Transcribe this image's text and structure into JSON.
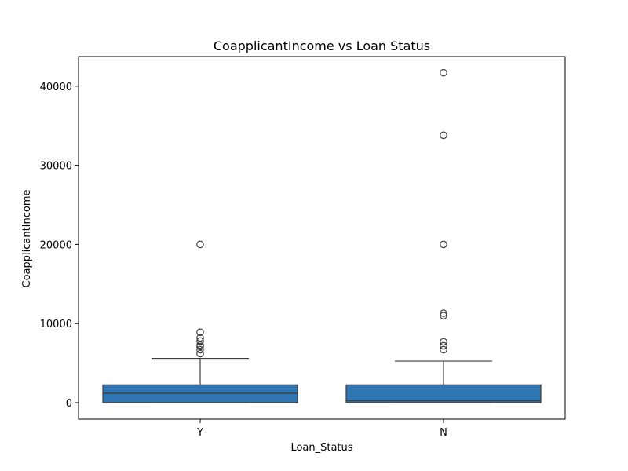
{
  "chart_data": {
    "type": "box",
    "title": "CoapplicantIncome vs Loan Status",
    "xlabel": "Loan_Status",
    "ylabel": "CoapplicantIncome",
    "categories": [
      "Y",
      "N"
    ],
    "ylim": [
      -2083,
      43750
    ],
    "yticks": [
      0,
      10000,
      20000,
      30000,
      40000
    ],
    "box_color": "#2f75b1",
    "line_color": "#3d3d3d",
    "boxes": [
      {
        "category": "Y",
        "whisker_low": 0,
        "q1": 0,
        "median": 1200,
        "q3": 2250,
        "whisker_high": 5600,
        "outliers": [
          6200,
          6700,
          7100,
          7300,
          7800,
          8200,
          8900,
          20000
        ]
      },
      {
        "category": "N",
        "whisker_low": 0,
        "q1": 0,
        "median": 250,
        "q3": 2250,
        "whisker_high": 5250,
        "outliers": [
          6700,
          7200,
          7700,
          11000,
          11300,
          20000,
          33800,
          41700
        ]
      }
    ]
  }
}
